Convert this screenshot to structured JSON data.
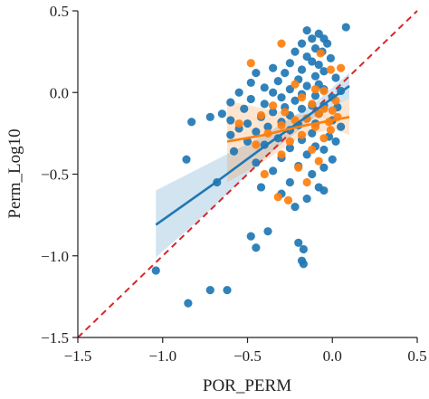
{
  "chart_data": {
    "type": "scatter",
    "title": "",
    "xlabel": "POR_PERM",
    "ylabel": "Perm_Log10",
    "xlim": [
      -1.5,
      0.5
    ],
    "ylim": [
      -1.5,
      0.5
    ],
    "xticks": [
      -1.5,
      -1.0,
      -0.5,
      0.0,
      0.5
    ],
    "xtick_labels": [
      "−1.5",
      "−1.0",
      "−0.5",
      "0.0",
      "0.5"
    ],
    "yticks": [
      -1.5,
      -1.0,
      -0.5,
      0.0,
      0.5
    ],
    "ytick_labels": [
      "−1.5",
      "−1.0",
      "−0.5",
      "0.0",
      "0.5"
    ],
    "grid": false,
    "legend": "none",
    "reference_line": {
      "x": [
        -1.5,
        0.5
      ],
      "y": [
        -1.5,
        0.5
      ],
      "color": "#d62728",
      "style": "dashed"
    },
    "series": [
      {
        "color": "#1f77b4",
        "points": [
          [
            0.08,
            0.4
          ],
          [
            -0.15,
            0.38
          ],
          [
            -0.08,
            0.36
          ],
          [
            -0.12,
            0.33
          ],
          [
            -0.05,
            0.33
          ],
          [
            -0.18,
            0.3
          ],
          [
            -0.03,
            0.3
          ],
          [
            -0.1,
            0.27
          ],
          [
            -0.22,
            0.25
          ],
          [
            -0.06,
            0.25
          ],
          [
            -0.15,
            0.22
          ],
          [
            -0.01,
            0.21
          ],
          [
            -0.12,
            0.19
          ],
          [
            -0.25,
            0.18
          ],
          [
            -0.08,
            0.17
          ],
          [
            -0.35,
            0.15
          ],
          [
            -0.18,
            0.14
          ],
          [
            -0.05,
            0.13
          ],
          [
            -0.45,
            0.12
          ],
          [
            -0.28,
            0.12
          ],
          [
            -0.1,
            0.1
          ],
          [
            0.02,
            0.09
          ],
          [
            -0.2,
            0.08
          ],
          [
            -0.32,
            0.07
          ],
          [
            -0.48,
            0.06
          ],
          [
            -0.08,
            0.05
          ],
          [
            -0.15,
            0.04
          ],
          [
            -0.4,
            0.03
          ],
          [
            -0.25,
            0.02
          ],
          [
            -0.05,
            0.02
          ],
          [
            0.05,
            0.01
          ],
          [
            -0.55,
            0.0
          ],
          [
            -0.35,
            0.0
          ],
          [
            -0.18,
            -0.01
          ],
          [
            -0.1,
            -0.02
          ],
          [
            -0.3,
            -0.03
          ],
          [
            0.0,
            -0.03
          ],
          [
            -0.48,
            -0.04
          ],
          [
            -0.22,
            -0.05
          ],
          [
            -0.6,
            -0.06
          ],
          [
            -0.4,
            -0.07
          ],
          [
            -0.12,
            -0.08
          ],
          [
            -0.05,
            -0.08
          ],
          [
            -0.28,
            -0.09
          ],
          [
            0.03,
            -0.09
          ],
          [
            -0.52,
            -0.1
          ],
          [
            -0.18,
            -0.1
          ],
          [
            -0.35,
            -0.12
          ],
          [
            -0.65,
            -0.13
          ],
          [
            -0.08,
            -0.13
          ],
          [
            -0.25,
            -0.14
          ],
          [
            -0.72,
            -0.15
          ],
          [
            -0.42,
            -0.15
          ],
          [
            -0.15,
            -0.16
          ],
          [
            -0.6,
            -0.17
          ],
          [
            0.0,
            -0.17
          ],
          [
            -0.3,
            -0.18
          ],
          [
            -0.5,
            -0.19
          ],
          [
            -0.1,
            -0.19
          ],
          [
            -0.2,
            -0.2
          ],
          [
            -0.38,
            -0.21
          ],
          [
            0.05,
            -0.21
          ],
          [
            -0.55,
            -0.22
          ],
          [
            -0.25,
            -0.23
          ],
          [
            -0.45,
            -0.24
          ],
          [
            -0.12,
            -0.25
          ],
          [
            -0.6,
            -0.26
          ],
          [
            -0.02,
            -0.27
          ],
          [
            -0.32,
            -0.28
          ],
          [
            -0.18,
            -0.29
          ],
          [
            -0.5,
            -0.3
          ],
          [
            0.02,
            -0.3
          ],
          [
            -0.4,
            -0.32
          ],
          [
            -0.1,
            -0.33
          ],
          [
            -0.25,
            -0.34
          ],
          [
            -0.05,
            -0.35
          ],
          [
            -0.58,
            -0.36
          ],
          [
            -0.15,
            -0.38
          ],
          [
            -0.3,
            -0.4
          ],
          [
            0.0,
            -0.41
          ],
          [
            -0.45,
            -0.43
          ],
          [
            -0.2,
            -0.45
          ],
          [
            -0.05,
            -0.46
          ],
          [
            -0.35,
            -0.48
          ],
          [
            -0.12,
            -0.5
          ],
          [
            -0.68,
            -0.55
          ],
          [
            -0.25,
            -0.55
          ],
          [
            -0.42,
            -0.58
          ],
          [
            -0.08,
            -0.58
          ],
          [
            -0.3,
            -0.62
          ],
          [
            -0.15,
            -0.65
          ],
          [
            -0.22,
            -0.7
          ],
          [
            -0.05,
            -0.6
          ],
          [
            -0.83,
            -0.18
          ],
          [
            -0.86,
            -0.41
          ],
          [
            -0.38,
            -0.85
          ],
          [
            -0.48,
            -0.88
          ],
          [
            -0.45,
            -0.95
          ],
          [
            -0.2,
            -0.92
          ],
          [
            -0.17,
            -0.96
          ],
          [
            -0.18,
            -1.03
          ],
          [
            -0.17,
            -1.05
          ],
          [
            -1.04,
            -1.09
          ],
          [
            -0.72,
            -1.21
          ],
          [
            -0.62,
            -1.21
          ],
          [
            -0.85,
            -1.29
          ]
        ]
      },
      {
        "color": "#ff7f0e",
        "points": [
          [
            -0.3,
            0.3
          ],
          [
            -0.07,
            0.24
          ],
          [
            -0.48,
            0.18
          ],
          [
            0.05,
            0.15
          ],
          [
            -0.01,
            0.14
          ],
          [
            -0.22,
            0.05
          ],
          [
            -0.1,
            0.02
          ],
          [
            -0.05,
            0.01
          ],
          [
            -0.18,
            -0.03
          ],
          [
            0.02,
            -0.05
          ],
          [
            -0.12,
            -0.07
          ],
          [
            -0.35,
            -0.08
          ],
          [
            -0.05,
            -0.1
          ],
          [
            0.0,
            -0.11
          ],
          [
            -0.28,
            -0.12
          ],
          [
            -0.08,
            -0.13
          ],
          [
            -0.42,
            -0.14
          ],
          [
            0.03,
            -0.15
          ],
          [
            -0.15,
            -0.16
          ],
          [
            -0.22,
            -0.17
          ],
          [
            -0.02,
            -0.18
          ],
          [
            -0.55,
            -0.19
          ],
          [
            -0.3,
            -0.2
          ],
          [
            -0.1,
            -0.21
          ],
          [
            -0.01,
            -0.23
          ],
          [
            -0.38,
            -0.25
          ],
          [
            -0.18,
            -0.26
          ],
          [
            -0.05,
            -0.28
          ],
          [
            -0.25,
            -0.3
          ],
          [
            -0.45,
            -0.32
          ],
          [
            -0.12,
            -0.35
          ],
          [
            -0.3,
            -0.38
          ],
          [
            -0.08,
            -0.42
          ],
          [
            -0.2,
            -0.46
          ],
          [
            -0.4,
            -0.5
          ],
          [
            -0.15,
            -0.55
          ],
          [
            -0.32,
            -0.64
          ],
          [
            -0.26,
            -0.66
          ]
        ]
      }
    ],
    "fit_lines": [
      {
        "color": "#1f77b4",
        "x": [
          -1.04,
          -0.7,
          -0.4,
          -0.1,
          0.1
        ],
        "y": [
          -0.81,
          -0.56,
          -0.33,
          -0.11,
          0.04
        ],
        "ci_upper": [
          -0.6,
          -0.42,
          -0.26,
          -0.06,
          0.12
        ],
        "ci_lower": [
          -1.01,
          -0.7,
          -0.4,
          -0.15,
          -0.04
        ]
      },
      {
        "color": "#ff7f0e",
        "x": [
          -0.62,
          -0.4,
          -0.2,
          0.0,
          0.1
        ],
        "y": [
          -0.3,
          -0.26,
          -0.21,
          -0.17,
          -0.15
        ],
        "ci_upper": [
          -0.05,
          -0.1,
          -0.14,
          -0.1,
          -0.04
        ],
        "ci_lower": [
          -0.55,
          -0.42,
          -0.28,
          -0.22,
          -0.26
        ]
      }
    ]
  }
}
